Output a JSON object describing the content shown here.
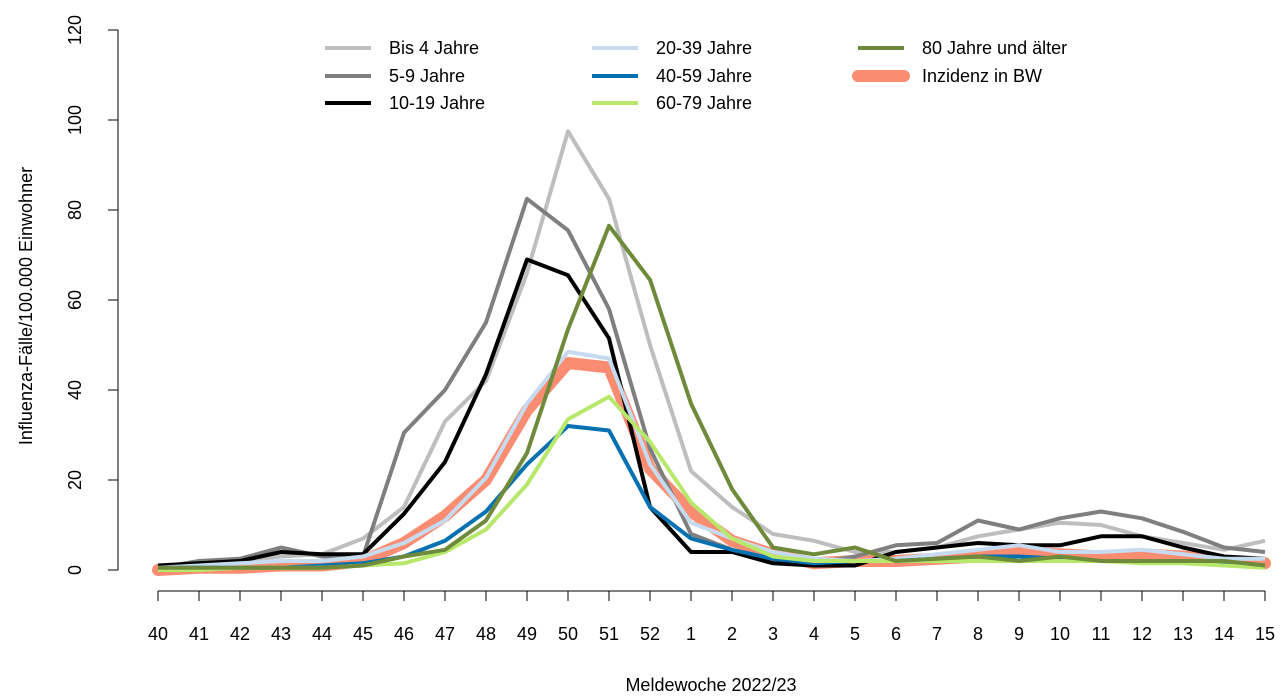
{
  "chart_data": {
    "type": "line",
    "xlabel": "Meldewoche 2022/23",
    "ylabel": "Influenza-Fälle/100.000 Einwohner",
    "ylim": [
      0,
      120
    ],
    "yticks": [
      0,
      20,
      40,
      60,
      80,
      100,
      120
    ],
    "categories": [
      "40",
      "41",
      "42",
      "43",
      "44",
      "45",
      "46",
      "47",
      "48",
      "49",
      "50",
      "51",
      "52",
      "1",
      "2",
      "3",
      "4",
      "5",
      "6",
      "7",
      "8",
      "9",
      "10",
      "11",
      "12",
      "13",
      "14",
      "15"
    ],
    "grid": false,
    "legend_position": "top",
    "series": [
      {
        "name": "Bis 4 Jahre",
        "color": "#bebebe",
        "width": 4,
        "values": [
          0.5,
          1.5,
          2,
          3,
          3.5,
          7,
          14,
          33,
          42,
          66,
          97.5,
          82.5,
          50,
          22,
          14,
          8,
          6.5,
          4,
          4,
          5,
          7.5,
          9,
          10.5,
          10,
          7.5,
          6,
          4.5,
          6.5
        ]
      },
      {
        "name": "5-9 Jahre",
        "color": "#7f7f7f",
        "width": 4,
        "values": [
          0.5,
          2,
          2.5,
          5,
          3,
          3,
          30.5,
          40,
          55,
          82.5,
          75.5,
          58,
          27,
          8,
          4.5,
          2,
          1.5,
          3,
          5.5,
          6,
          11,
          9,
          11.5,
          13,
          11.5,
          8.5,
          5,
          4
        ]
      },
      {
        "name": "10-19 Jahre",
        "color": "#000000",
        "width": 4,
        "values": [
          1,
          1.5,
          2,
          4,
          3.5,
          3.5,
          12.5,
          24,
          43.5,
          69,
          65.5,
          51.5,
          14,
          4,
          4,
          1.5,
          1,
          1,
          4,
          5,
          6,
          5.5,
          5.5,
          7.5,
          7.5,
          5,
          3,
          2.5
        ]
      },
      {
        "name": "20-39 Jahre",
        "color": "#c6dbef",
        "width": 4,
        "values": [
          0.5,
          1,
          1.5,
          2,
          2,
          3,
          6,
          11,
          20.5,
          37,
          48.5,
          47,
          23.5,
          10.5,
          7,
          4,
          2.5,
          2,
          2.5,
          3.5,
          4.5,
          5.5,
          4,
          4,
          4.5,
          3.5,
          2.5,
          2.5
        ]
      },
      {
        "name": "40-59 Jahre",
        "color": "#0571b0",
        "width": 4,
        "values": [
          0.5,
          0.5,
          0.5,
          0.5,
          1,
          1.5,
          3,
          6.5,
          13,
          23.5,
          32,
          31,
          14,
          7,
          4.5,
          2.5,
          1.5,
          2,
          2,
          2.5,
          3,
          3,
          2.5,
          2,
          2,
          2,
          1.5,
          1
        ]
      },
      {
        "name": "60-79 Jahre",
        "color": "#b8e86b",
        "width": 4,
        "values": [
          0,
          0,
          0.5,
          0.5,
          0.5,
          1,
          1.5,
          4,
          9,
          19,
          33.5,
          38.5,
          28.5,
          15,
          7,
          3,
          2,
          2,
          2,
          2,
          2,
          2,
          2,
          2,
          1.5,
          1.5,
          1,
          0.5
        ]
      },
      {
        "name": "80 Jahre und älter",
        "color": "#6e8a3a",
        "width": 4,
        "values": [
          0.5,
          0.5,
          0.5,
          0.5,
          0.5,
          1,
          3,
          4.5,
          11,
          26,
          53.5,
          76.5,
          64.5,
          37,
          18,
          5,
          3.5,
          5,
          2,
          2.5,
          3,
          2,
          3,
          2,
          2,
          2,
          2,
          1
        ]
      },
      {
        "name": "Inzidenz in BW",
        "color": "#fa8c72",
        "width": 12,
        "values": [
          0,
          0.5,
          0.5,
          1,
          1,
          2,
          6,
          12,
          20,
          35.5,
          46,
          45,
          22.5,
          13,
          6.5,
          3.5,
          1.5,
          2,
          2,
          2.5,
          3,
          4,
          3.5,
          3,
          3.5,
          3,
          2,
          1.5
        ]
      }
    ]
  }
}
